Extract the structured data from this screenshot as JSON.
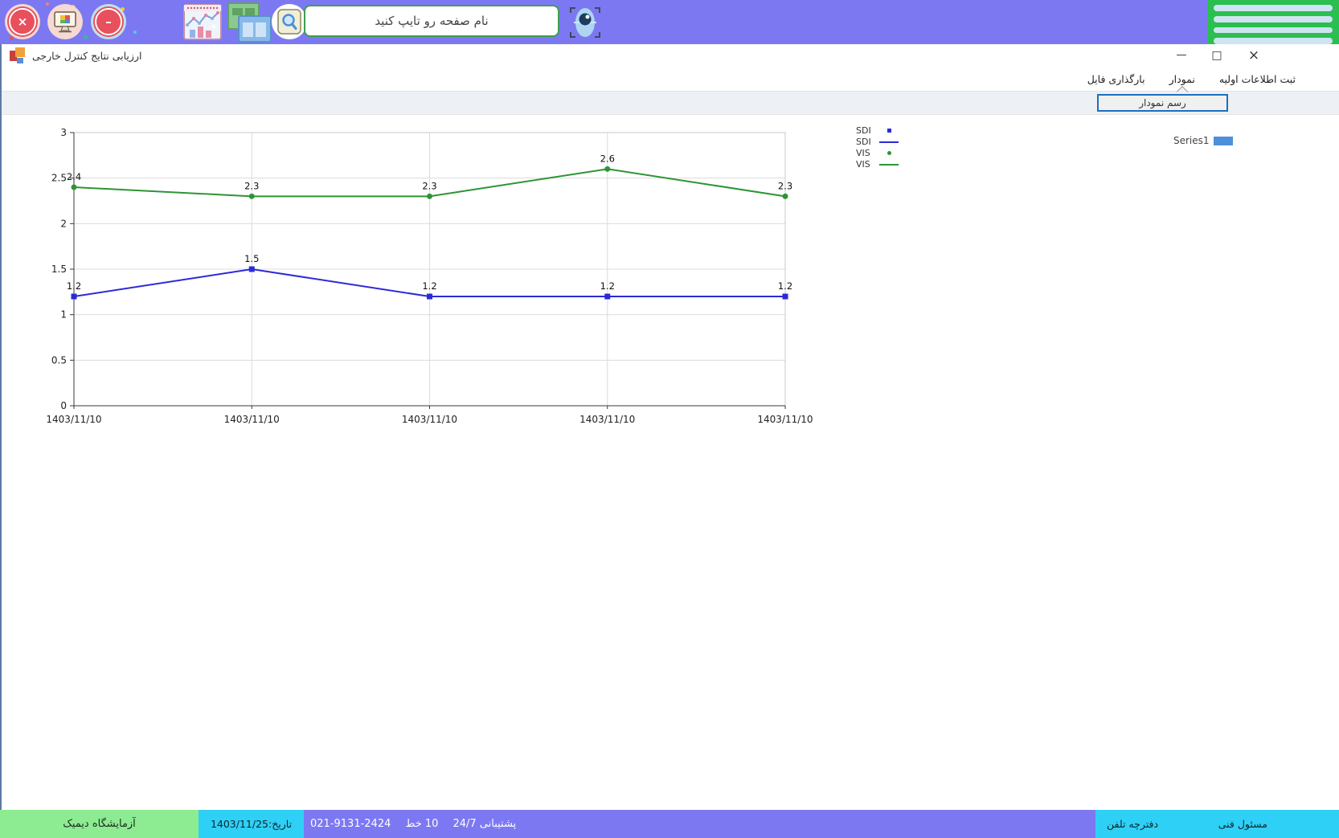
{
  "toolbar": {
    "search_placeholder": "نام صفحه رو تایپ کنید"
  },
  "window": {
    "title": "ارزیابی نتایج کنترل خارجی",
    "controls": {
      "minimize": "—",
      "maximize": "□",
      "close": "×"
    },
    "menu": [
      {
        "label": "ثبت اطلاعات اولیه"
      },
      {
        "label": "نمودار"
      },
      {
        "label": "بارگذاری فایل"
      }
    ],
    "draw_chart_button": "رسم نمودار"
  },
  "chart_data": {
    "type": "line",
    "x_labels": [
      "1403/11/10",
      "1403/11/10",
      "1403/11/10",
      "1403/11/10",
      "1403/11/10"
    ],
    "series": [
      {
        "name": "SDI",
        "color": "#2b2bd5",
        "marker": "square",
        "values": [
          1.2,
          1.5,
          1.2,
          1.2,
          1.2
        ]
      },
      {
        "name": "VIS",
        "color": "#2e9434",
        "marker": "dot",
        "values": [
          2.4,
          2.3,
          2.3,
          2.6,
          2.3
        ]
      }
    ],
    "ylim": [
      0,
      3
    ],
    "y_tick_step": 0.5,
    "grid": true,
    "data_labels": true,
    "legend_position": "right-top",
    "legend_entries": [
      {
        "label": "SDI",
        "series": "SDI",
        "marker": "square"
      },
      {
        "label": "SDI",
        "series": "SDI",
        "marker": "line"
      },
      {
        "label": "VIS",
        "series": "VIS",
        "marker": "dot"
      },
      {
        "label": "VIS",
        "series": "VIS",
        "marker": "line"
      }
    ],
    "secondary_legend": {
      "label": "Series1",
      "color": "#4d8fdb"
    }
  },
  "statusbar": {
    "lab_name": "آزمایشگاه دیمیک",
    "date": "تاریخ:1403/11/25",
    "support_phone": "021-9131-2424",
    "support_lines": "10 خط",
    "support_label": "پشتیبانی 24/7",
    "phonebook": "دفترچه تلفن",
    "technical_manager": "مسئول فنی"
  },
  "colors": {
    "toolbar_purple": "#7c78f2",
    "status_green": "#8deb92",
    "status_cyan": "#2fd0f5",
    "hamburger_green": "#2abf4f",
    "button_border_blue": "#1d6fc0",
    "input_border_green": "#3f9e52"
  }
}
